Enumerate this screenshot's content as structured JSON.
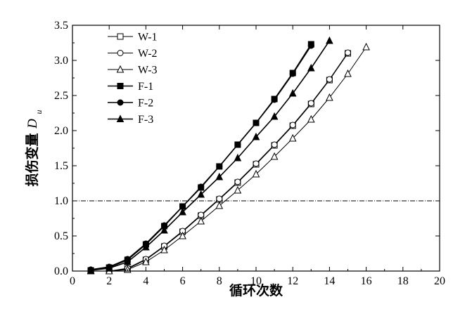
{
  "chart_data": {
    "type": "line",
    "xlabel": "循环次数",
    "ylabel_main": "损伤变量",
    "ylabel_symbol": "D",
    "ylabel_subscript": "u",
    "xlim": [
      0,
      20
    ],
    "ylim": [
      0,
      3.5
    ],
    "xticks": [
      0,
      2,
      4,
      6,
      8,
      10,
      12,
      14,
      16,
      18,
      20
    ],
    "yticks": [
      0.0,
      0.5,
      1.0,
      1.5,
      2.0,
      2.5,
      3.0,
      3.5
    ],
    "grid": false,
    "legend_position": "top-left",
    "reference_line": {
      "y": 1.0,
      "style": "dash-dot"
    },
    "series": [
      {
        "name": "W-1",
        "marker": "square-open",
        "color": "#000000",
        "x": [
          1,
          2,
          3,
          4,
          5,
          6,
          7,
          8,
          9,
          10,
          11,
          12,
          13,
          14,
          15
        ],
        "y": [
          0,
          0,
          0.03,
          0.16,
          0.35,
          0.56,
          0.79,
          1.02,
          1.26,
          1.52,
          1.79,
          2.07,
          2.38,
          2.72,
          3.1
        ]
      },
      {
        "name": "W-2",
        "marker": "circle-open",
        "color": "#000000",
        "x": [
          1,
          2,
          3,
          4,
          5,
          6,
          7,
          8,
          9,
          10,
          11,
          12,
          13,
          14,
          15
        ],
        "y": [
          0,
          0,
          0.04,
          0.17,
          0.36,
          0.57,
          0.8,
          1.03,
          1.27,
          1.53,
          1.8,
          2.08,
          2.39,
          2.73,
          3.11
        ]
      },
      {
        "name": "W-3",
        "marker": "triangle-open",
        "color": "#000000",
        "x": [
          1,
          2,
          3,
          4,
          5,
          6,
          7,
          8,
          9,
          10,
          11,
          12,
          13,
          14,
          15,
          16
        ],
        "y": [
          0,
          0,
          0.02,
          0.13,
          0.3,
          0.5,
          0.71,
          0.93,
          1.15,
          1.38,
          1.63,
          1.89,
          2.16,
          2.47,
          2.81,
          3.19
        ]
      },
      {
        "name": "F-1",
        "marker": "square-filled",
        "color": "#000000",
        "x": [
          1,
          2,
          3,
          4,
          5,
          6,
          7,
          8,
          9,
          10,
          11,
          12,
          13
        ],
        "y": [
          0.01,
          0.05,
          0.16,
          0.38,
          0.64,
          0.92,
          1.19,
          1.49,
          1.8,
          2.11,
          2.45,
          2.82,
          3.23
        ]
      },
      {
        "name": "F-2",
        "marker": "circle-filled",
        "color": "#000000",
        "x": [
          1,
          2,
          3,
          4,
          5,
          6,
          7,
          8,
          9,
          10,
          11,
          12,
          13
        ],
        "y": [
          0.02,
          0.06,
          0.17,
          0.39,
          0.65,
          0.92,
          1.2,
          1.49,
          1.8,
          2.11,
          2.44,
          2.81,
          3.21
        ]
      },
      {
        "name": "F-3",
        "marker": "triangle-filled",
        "color": "#000000",
        "x": [
          1,
          2,
          3,
          4,
          5,
          6,
          7,
          8,
          9,
          10,
          11,
          12,
          13,
          14
        ],
        "y": [
          0.01,
          0.04,
          0.13,
          0.34,
          0.58,
          0.84,
          1.09,
          1.34,
          1.61,
          1.91,
          2.2,
          2.53,
          2.89,
          3.28
        ]
      }
    ]
  }
}
